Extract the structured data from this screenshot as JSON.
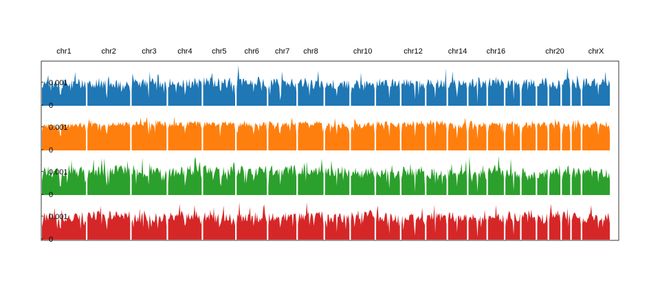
{
  "chart_data": {
    "type": "area",
    "chromosomes": [
      "chr1",
      "chr2",
      "chr3",
      "chr4",
      "chr5",
      "chr6",
      "chr7",
      "chr8",
      "chr9",
      "chr10",
      "chr11",
      "chr12",
      "chr13",
      "chr14",
      "chr15",
      "chr16",
      "chr17",
      "chr18",
      "chr19",
      "chr20",
      "chr21",
      "chr22",
      "chrX"
    ],
    "labeled_chromosomes": [
      "chr1",
      "chr2",
      "chr3",
      "chr4",
      "chr5",
      "chr6",
      "chr7",
      "chr8",
      "chr10",
      "chr12",
      "chr14",
      "chr16",
      "chr20",
      "chrX"
    ],
    "chromosome_lengths_mb": [
      249,
      242,
      198,
      190,
      181,
      171,
      159,
      145,
      138,
      134,
      135,
      133,
      114,
      107,
      102,
      90,
      83,
      80,
      59,
      64,
      47,
      51,
      156
    ],
    "y_ticks": [
      {
        "value": 0,
        "label": "0"
      },
      {
        "value": 0.001,
        "label": "0.001"
      }
    ],
    "ylim": [
      0,
      0.0019
    ],
    "legend": "none",
    "grid": false,
    "series": [
      {
        "color": "#1f77b4",
        "baseline": 0.00096,
        "variation": 0.00022,
        "dip_depth": 0.9,
        "seed": 11
      },
      {
        "color": "#ff7f0e",
        "baseline": 0.00112,
        "variation": 0.00012,
        "dip_depth": 0.6,
        "seed": 23
      },
      {
        "color": "#2ca02c",
        "baseline": 0.00098,
        "variation": 0.00024,
        "dip_depth": 0.9,
        "seed": 37
      },
      {
        "color": "#d62728",
        "baseline": 0.00098,
        "variation": 0.00022,
        "dip_depth": 0.9,
        "seed": 53
      }
    ]
  }
}
